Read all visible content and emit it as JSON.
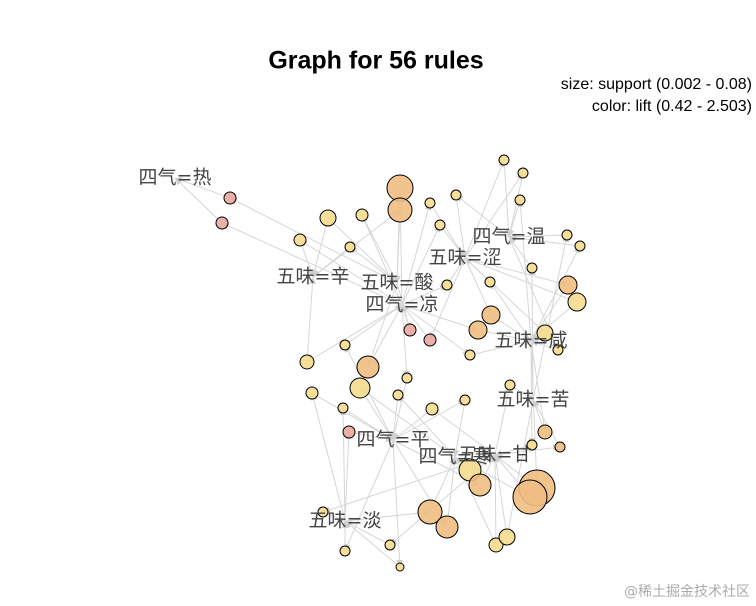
{
  "title": "Graph for 56 rules",
  "legend": {
    "size": "size: support (0.002 - 0.08)",
    "color": "color: lift (0.42 - 2.503)"
  },
  "nodes": [
    {
      "label": "四气=热"
    },
    {
      "label": "五味=辛"
    },
    {
      "label": "五味=酸"
    },
    {
      "label": "四气=凉"
    },
    {
      "label": "四气=温"
    },
    {
      "label": "五味=涩"
    },
    {
      "label": "五味=咸"
    },
    {
      "label": "五味=苦"
    },
    {
      "label": "四气=平"
    },
    {
      "label": "四气=寒"
    },
    {
      "label": "五味=甘"
    },
    {
      "label": "五味=淡"
    }
  ],
  "watermark": "@稀土掘金技术社区"
}
